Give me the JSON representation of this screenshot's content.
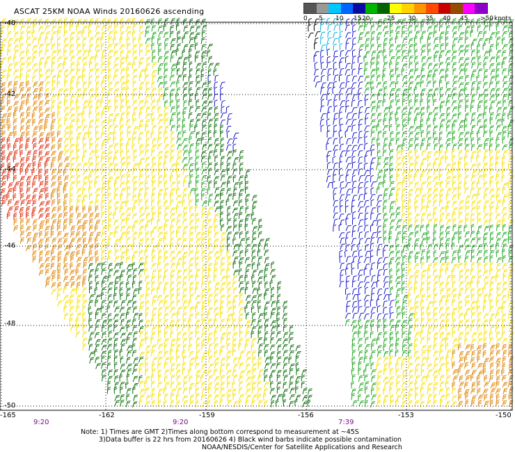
{
  "title": "ASCAT 25KM NOAA Winds 20160626 ascending",
  "color_scale": {
    "ticks": [
      "0",
      "5",
      "10",
      "15",
      "20",
      "25",
      "30",
      "35",
      "40",
      "45",
      ">50"
    ],
    "unit": "knots",
    "colors": [
      "#555555",
      "#999999",
      "#00c8ff",
      "#0064ff",
      "#0a0aa0",
      "#00b400",
      "#006400",
      "#ffff00",
      "#ffd200",
      "#ff9600",
      "#ff4b00",
      "#c80000",
      "#964b00",
      "#ff00ff",
      "#8c00c8"
    ]
  },
  "lat_labels": [
    "-40",
    "-42",
    "-44",
    "-46",
    "-48",
    "-50"
  ],
  "lon_labels": [
    "-165",
    "-162",
    "-159",
    "-156",
    "-153",
    "-150"
  ],
  "time_labels": [
    "9:20",
    "9:20",
    "7:39"
  ],
  "notes": [
    "Note: 1) Times are GMT 2)Times along bottom correspond to measurement at ~45S",
    "3)Data buffer is 22 hrs from 20160626 4) Black wind barbs indicate possible contamination",
    "NOAA/NESDIS/Center for Satellite Applications and Research"
  ],
  "legend_colors": {
    "red": "#e03010",
    "orange": "#e08a10",
    "yellow": "#f8e000",
    "green": "#22a822",
    "dark_green": "#0b6e0b",
    "blue": "#1010c8",
    "cyan": "#00b0e0",
    "black": "#000000"
  }
}
